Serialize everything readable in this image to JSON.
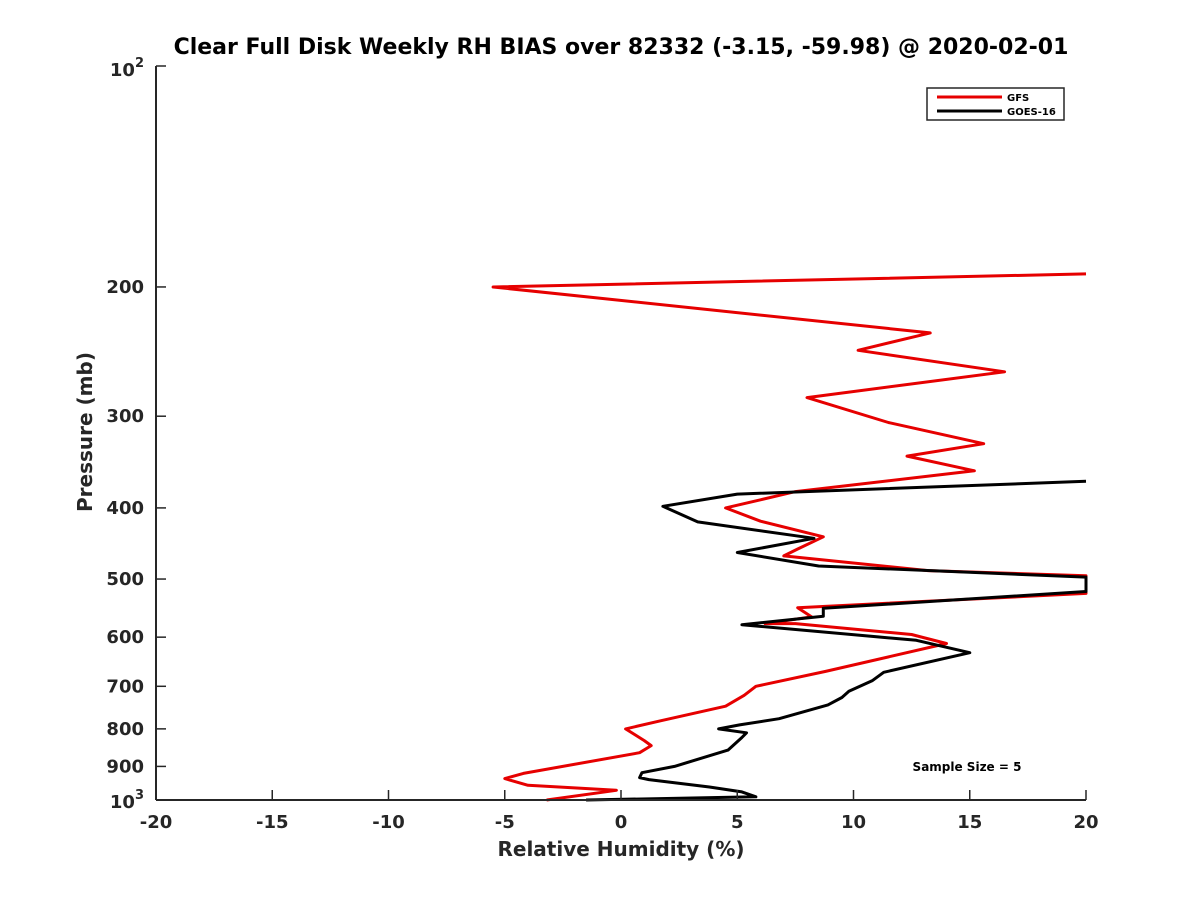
{
  "chart_data": {
    "type": "line",
    "title": "Clear Full Disk Weekly RH BIAS over 82332 (-3.15, -59.98) @ 2020-02-01",
    "xlabel": "Relative Humidity (%)",
    "ylabel": "Pressure (mb)",
    "xlim": [
      -20,
      20
    ],
    "ylim": [
      100,
      1000
    ],
    "y_scale": "log",
    "y_reversed": true,
    "x_ticks": [
      -20,
      -15,
      -10,
      -5,
      0,
      5,
      10,
      15,
      20
    ],
    "x_tick_labels": [
      "-20",
      "-15",
      "-10",
      "-5",
      "0",
      "5",
      "10",
      "15",
      "20"
    ],
    "y_ticks": [
      200,
      300,
      400,
      500,
      600,
      700,
      800,
      900
    ],
    "y_tick_labels": [
      "200",
      "300",
      "400",
      "500",
      "600",
      "700",
      "800",
      "900"
    ],
    "y_edge_labels": {
      "top_base": "10",
      "top_exp": "2",
      "bottom_base": "10",
      "bottom_exp": "3"
    },
    "legend_position": "top-right",
    "grid": false,
    "annotation": "Sample Size = 5",
    "series": [
      {
        "name": "GFS",
        "color": "#e60000",
        "points": [
          [
            -3.2,
            1000
          ],
          [
            -0.2,
            970
          ],
          [
            -4.0,
            955
          ],
          [
            -5.0,
            935
          ],
          [
            -4.2,
            920
          ],
          [
            0.8,
            862
          ],
          [
            1.3,
            843
          ],
          [
            1.0,
            830
          ],
          [
            0.2,
            800
          ],
          [
            1.7,
            780
          ],
          [
            4.5,
            745
          ],
          [
            5.3,
            720
          ],
          [
            5.8,
            700
          ],
          [
            8.8,
            668
          ],
          [
            14.0,
            612
          ],
          [
            12.5,
            595
          ],
          [
            7.5,
            575
          ],
          [
            6.2,
            575
          ],
          [
            8.2,
            563
          ],
          [
            7.6,
            547
          ],
          [
            20,
            523
          ],
          [
            20,
            495
          ],
          [
            13.2,
            487
          ],
          [
            7.0,
            465
          ],
          [
            7.6,
            455
          ],
          [
            8.7,
            438
          ],
          [
            6.0,
            417
          ],
          [
            4.5,
            400
          ],
          [
            6.0,
            390
          ],
          [
            7.5,
            380
          ],
          [
            15.2,
            356
          ],
          [
            12.3,
            340
          ],
          [
            15.6,
            327
          ],
          [
            11.5,
            306
          ],
          [
            8.0,
            283
          ],
          [
            16.5,
            261
          ],
          [
            10.2,
            244
          ],
          [
            13.3,
            231
          ],
          [
            -5.5,
            200
          ],
          [
            20,
            192
          ]
        ]
      },
      {
        "name": "GOES-16",
        "color": "#000000",
        "points": [
          [
            -1.5,
            1000
          ],
          [
            5.8,
            990
          ],
          [
            5.2,
            975
          ],
          [
            3.8,
            960
          ],
          [
            1.2,
            938
          ],
          [
            0.8,
            932
          ],
          [
            0.9,
            918
          ],
          [
            2.3,
            900
          ],
          [
            4.6,
            855
          ],
          [
            5.2,
            822
          ],
          [
            5.4,
            810
          ],
          [
            4.2,
            800
          ],
          [
            5.1,
            790
          ],
          [
            6.8,
            775
          ],
          [
            8.9,
            742
          ],
          [
            9.5,
            725
          ],
          [
            9.8,
            711
          ],
          [
            10.8,
            688
          ],
          [
            11.3,
            670
          ],
          [
            15.0,
            630
          ],
          [
            12.7,
            606
          ],
          [
            5.2,
            577
          ],
          [
            8.7,
            562
          ],
          [
            8.7,
            548
          ],
          [
            20,
            520
          ],
          [
            20,
            497
          ],
          [
            8.5,
            480
          ],
          [
            5.0,
            460
          ],
          [
            8.3,
            440
          ],
          [
            3.3,
            418
          ],
          [
            1.8,
            398
          ],
          [
            5.0,
            383
          ],
          [
            20,
            368
          ]
        ]
      }
    ]
  }
}
